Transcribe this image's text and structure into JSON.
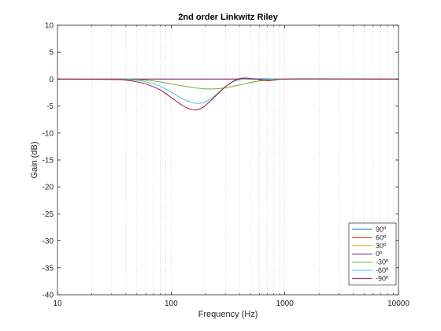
{
  "chart_data": {
    "type": "line",
    "title": "2nd order Linkwitz Riley",
    "xlabel": "Frequency (Hz)",
    "ylabel": "Gain (dB)",
    "xscale": "log",
    "xlim": [
      10,
      10000
    ],
    "ylim": [
      -40,
      10
    ],
    "xticks": [
      10,
      100,
      1000,
      10000
    ],
    "xtick_labels": [
      "10",
      "100",
      "1000",
      "10000"
    ],
    "yticks": [
      10,
      5,
      0,
      -5,
      -10,
      -15,
      -20,
      -25,
      -30,
      -35,
      -40
    ],
    "ytick_labels": [
      "10",
      "5",
      "0",
      "-5",
      "-10",
      "-15",
      "-20",
      "-25",
      "-30",
      "-35",
      "-40"
    ],
    "grid": "dotted vertical minor",
    "legend_position": "bottom-right",
    "series": [
      {
        "name": "90º",
        "color": "#0072bd",
        "x": [
          10,
          10000
        ],
        "y": [
          0,
          0
        ]
      },
      {
        "name": "60º",
        "color": "#d95319",
        "x": [
          10,
          10000
        ],
        "y": [
          0,
          0
        ]
      },
      {
        "name": "30º",
        "color": "#edb120",
        "x": [
          10,
          10000
        ],
        "y": [
          0,
          0
        ]
      },
      {
        "name": "0º",
        "color": "#7e2f8e",
        "x": [
          10,
          10000
        ],
        "y": [
          0,
          0
        ]
      },
      {
        "name": "-30º",
        "color": "#77ac30",
        "x": [
          10,
          40,
          60,
          80,
          100,
          130,
          160,
          200,
          250,
          300,
          400,
          500,
          700,
          1000,
          10000
        ],
        "y": [
          0,
          -0.05,
          -0.2,
          -0.5,
          -0.9,
          -1.3,
          -1.6,
          -1.8,
          -1.8,
          -1.6,
          -1.1,
          -0.6,
          -0.2,
          0,
          0
        ]
      },
      {
        "name": "-60º",
        "color": "#4dbeee",
        "x": [
          10,
          40,
          60,
          80,
          100,
          120,
          150,
          180,
          210,
          250,
          300,
          350,
          400,
          500,
          700,
          1000,
          10000
        ],
        "y": [
          0,
          -0.1,
          -0.5,
          -1.3,
          -2.4,
          -3.4,
          -4.3,
          -4.5,
          -4.0,
          -2.8,
          -1.4,
          -0.5,
          -0.1,
          0.1,
          0.1,
          0,
          0
        ]
      },
      {
        "name": "-90º",
        "color": "#a2142f",
        "x": [
          10,
          30,
          40,
          50,
          60,
          80,
          100,
          120,
          140,
          160,
          180,
          200,
          250,
          300,
          350,
          400,
          450,
          550,
          700,
          850,
          1000,
          1500,
          10000
        ],
        "y": [
          0,
          -0.05,
          -0.2,
          -0.5,
          -0.9,
          -2.0,
          -3.4,
          -4.6,
          -5.4,
          -5.7,
          -5.5,
          -4.9,
          -3.0,
          -1.4,
          -0.4,
          0.1,
          0.2,
          0,
          -0.3,
          -0.1,
          0,
          0.05,
          0
        ]
      }
    ]
  }
}
